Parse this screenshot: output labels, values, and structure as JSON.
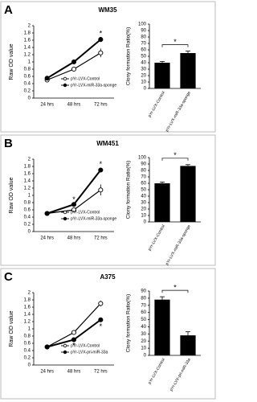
{
  "panels": [
    {
      "label": "A",
      "title": "WM35"
    },
    {
      "label": "B",
      "title": "WM451"
    },
    {
      "label": "C",
      "title": "A375"
    }
  ],
  "chart_data": [
    {
      "type": "line",
      "ylabel": "Raw OD value",
      "categories": [
        "24 hrs",
        "48 hrs",
        "72 hrs"
      ],
      "ylim": [
        0,
        2
      ],
      "yticks": [
        0,
        0.2,
        0.4,
        0.6,
        0.8,
        1,
        1.2,
        1.4,
        1.6,
        1.8,
        2
      ],
      "series": [
        {
          "name": "pYr-LVX-Control",
          "color": "#000000",
          "marker": "open",
          "values": [
            0.5,
            0.8,
            1.25
          ],
          "errors": [
            0.04,
            0.05,
            0.12
          ],
          "point_labels": [
            null,
            null,
            null
          ]
        },
        {
          "name": "pYr-LVX-miR-33a-sponge",
          "color": "#000000",
          "marker": "filled",
          "values": [
            0.55,
            1.0,
            1.62
          ],
          "errors": [
            0.03,
            0.05,
            0.07
          ],
          "point_labels": [
            null,
            null,
            "*"
          ]
        }
      ]
    },
    {
      "type": "bar",
      "ylabel": "Clony formation Ratio(%)",
      "categories": [
        "pYr-LVX-Control",
        "pYr-LVX-miR-33a-sponge"
      ],
      "values": [
        40,
        55
      ],
      "errors": [
        2,
        3
      ],
      "color": "#000000",
      "ylim": [
        0,
        100
      ],
      "yticks": [
        0,
        10,
        20,
        30,
        40,
        50,
        60,
        70,
        80,
        90,
        100
      ],
      "significance": "*"
    },
    {
      "type": "line",
      "ylabel": "Raw OD value",
      "categories": [
        "24 hrs",
        "48 hrs",
        "72 hrs"
      ],
      "ylim": [
        0,
        2
      ],
      "yticks": [
        0,
        0.2,
        0.4,
        0.6,
        0.8,
        1,
        1.2,
        1.4,
        1.6,
        1.8,
        2
      ],
      "series": [
        {
          "name": "pYr-LVX-Control",
          "color": "#000000",
          "marker": "open",
          "values": [
            0.5,
            0.6,
            1.15
          ],
          "errors": [
            0.03,
            0.05,
            0.15
          ],
          "point_labels": [
            null,
            null,
            null
          ]
        },
        {
          "name": "pYr-LVX-miR-33a-sponge",
          "color": "#000000",
          "marker": "filled",
          "values": [
            0.5,
            0.75,
            1.7
          ],
          "errors": [
            0.03,
            0.04,
            0.06
          ],
          "point_labels": [
            null,
            "*",
            "*"
          ]
        }
      ]
    },
    {
      "type": "bar",
      "ylabel": "Clony formation Ratio(%)",
      "categories": [
        "pYr-LVX-Control",
        "pYr-LVX-miR-33a-sponge"
      ],
      "values": [
        60,
        87
      ],
      "errors": [
        2,
        2
      ],
      "color": "#000000",
      "ylim": [
        0,
        100
      ],
      "yticks": [
        0,
        10,
        20,
        30,
        40,
        50,
        60,
        70,
        80,
        90,
        100
      ],
      "significance": "*"
    },
    {
      "type": "line",
      "ylabel": "Raw OD value",
      "categories": [
        "24 hrs",
        "48 hrs",
        "72 hrs"
      ],
      "ylim": [
        0,
        2
      ],
      "yticks": [
        0,
        0.2,
        0.4,
        0.6,
        0.8,
        1,
        1.2,
        1.4,
        1.6,
        1.8,
        2
      ],
      "series": [
        {
          "name": "pYr-LVX-Control",
          "color": "#000000",
          "marker": "open",
          "values": [
            0.5,
            0.9,
            1.7
          ],
          "errors": [
            0.03,
            0.05,
            0.08
          ],
          "point_labels": [
            null,
            null,
            null
          ]
        },
        {
          "name": "pYr-LVX-pri-miR-33a",
          "color": "#000000",
          "marker": "filled",
          "values": [
            0.5,
            0.7,
            1.25
          ],
          "errors": [
            0.03,
            0.04,
            0.06
          ],
          "point_labels": [
            null,
            "*",
            "*"
          ]
        }
      ]
    },
    {
      "type": "bar",
      "ylabel": "Clony formation Ratio(%)",
      "categories": [
        "pYr-LVX-Control",
        "pYr-LVX-pri-miR-33a"
      ],
      "values": [
        78,
        28
      ],
      "errors": [
        4,
        5
      ],
      "color": "#000000",
      "ylim": [
        0,
        90
      ],
      "yticks": [
        0,
        10,
        20,
        30,
        40,
        50,
        60,
        70,
        80,
        90
      ],
      "significance": "*"
    }
  ]
}
